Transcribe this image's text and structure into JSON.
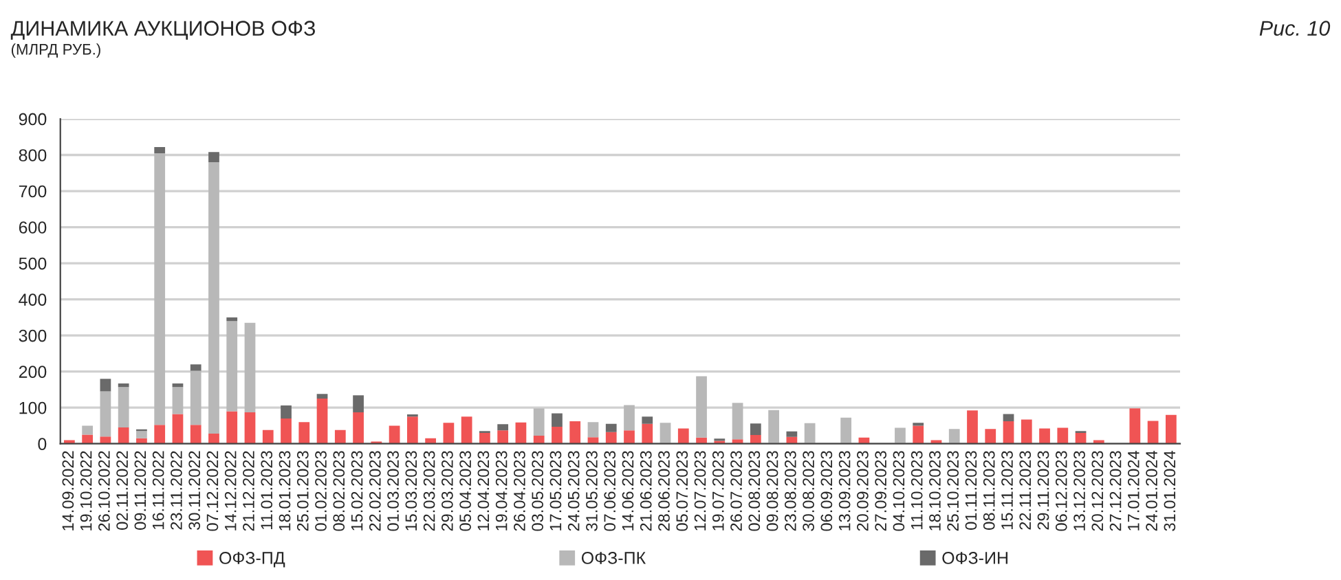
{
  "chart_data": {
    "type": "bar",
    "title": "ДИНАМИКА АУКЦИОНОВ ОФЗ",
    "subtitle": "(МЛРД РУБ.)",
    "annotations": [
      "Рис. 10"
    ],
    "categories": [
      "14.09.2022",
      "19.10.2022",
      "26.10.2022",
      "02.11.2022",
      "09.11.2022",
      "16.11.2022",
      "23.11.2022",
      "30.11.2022",
      "07.12.2022",
      "14.12.2022",
      "21.12.2022",
      "11.01.2023",
      "18.01.2023",
      "25.01.2023",
      "01.02.2023",
      "08.02.2023",
      "15.02.2023",
      "22.02.2023",
      "01.03.2023",
      "15.03.2023",
      "22.03.2023",
      "29.03.2023",
      "05.04.2023",
      "12.04.2023",
      "19.04.2023",
      "26.04.2023",
      "03.05.2023",
      "17.05.2023",
      "24.05.2023",
      "31.05.2023",
      "07.06.2023",
      "14.06.2023",
      "21.06.2023",
      "28.06.2023",
      "05.07.2023",
      "12.07.2023",
      "19.07.2023",
      "26.07.2023",
      "02.08.2023",
      "09.08.2023",
      "23.08.2023",
      "30.08.2023",
      "06.09.2023",
      "13.09.2023",
      "20.09.2023",
      "27.09.2023",
      "04.10.2023",
      "11.10.2023",
      "18.10.2023",
      "25.10.2023",
      "01.11.2023",
      "08.11.2023",
      "15.11.2023",
      "22.11.2023",
      "29.11.2023",
      "06.12.2023",
      "13.12.2023",
      "20.12.2023",
      "27.12.2023",
      "17.01.2024",
      "24.01.2024",
      "31.01.2024"
    ],
    "stacked": true,
    "series": [
      {
        "name": "ОФЗ-ПД",
        "color": "#f05454",
        "values": [
          10,
          25,
          20,
          45,
          15,
          52,
          82,
          52,
          28,
          90,
          87,
          38,
          70,
          60,
          125,
          38,
          87,
          6,
          50,
          75,
          15,
          58,
          75,
          30,
          37,
          59,
          22,
          47,
          62,
          18,
          32,
          37,
          55,
          0,
          42,
          17,
          8,
          12,
          24,
          0,
          19,
          0,
          0,
          0,
          17,
          0,
          0,
          50,
          10,
          0,
          92,
          41,
          62,
          67,
          42,
          44,
          30,
          10,
          0,
          98,
          63,
          80
        ]
      },
      {
        "name": "ОФЗ-ПК",
        "color": "#b8b8b8",
        "values": [
          0,
          25,
          125,
          112,
          20,
          753,
          75,
          150,
          752,
          250,
          248,
          0,
          0,
          0,
          0,
          0,
          0,
          0,
          0,
          0,
          0,
          0,
          0,
          0,
          0,
          0,
          76,
          0,
          0,
          42,
          0,
          70,
          0,
          58,
          null,
          170,
          null,
          101,
          0,
          93,
          0,
          57,
          0,
          72,
          0,
          0,
          44,
          0,
          0,
          41,
          0,
          0,
          0,
          0,
          0,
          0,
          null,
          0,
          0,
          0,
          0,
          0
        ]
      },
      {
        "name": "ОФЗ-ИН",
        "color": "#6a6a6a",
        "values": [
          0,
          0,
          35,
          10,
          5,
          17,
          10,
          18,
          28,
          10,
          0,
          0,
          36,
          0,
          13,
          0,
          47,
          0,
          0,
          6,
          0,
          0,
          0,
          5,
          17,
          0,
          0,
          37,
          0,
          0,
          23,
          0,
          20,
          0,
          0,
          0,
          6,
          0,
          32,
          0,
          15,
          0,
          0,
          0,
          0,
          0,
          0,
          8,
          0,
          0,
          0,
          0,
          20,
          0,
          0,
          0,
          5,
          0,
          0,
          0,
          0,
          0
        ]
      }
    ],
    "ylim": [
      0,
      900
    ],
    "yticks": [
      0,
      100,
      200,
      300,
      400,
      500,
      600,
      700,
      800,
      900
    ],
    "grid": "y",
    "legend": "bottom"
  }
}
